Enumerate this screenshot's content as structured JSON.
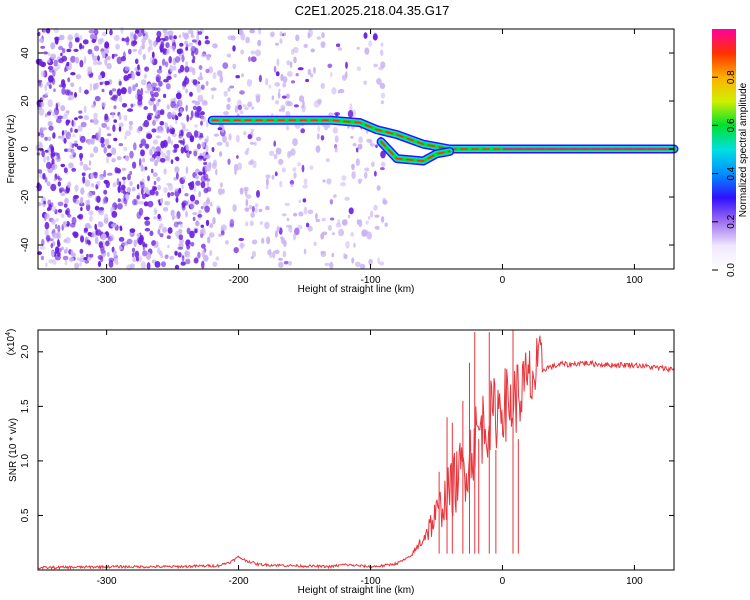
{
  "title": "C2E1.2025.218.04.35.G17",
  "colors": {
    "line": "#e8343a",
    "scatter_dark": "#6a1fe0",
    "scatter_light": "#c9b3f2",
    "axis": "#000000"
  },
  "chart_data": [
    {
      "type": "heatmap",
      "name": "spectrogram",
      "xlabel": "Height of straight line (km)",
      "ylabel": "Frequency (Hz)",
      "xlim": [
        -352,
        130
      ],
      "ylim": [
        -50,
        50
      ],
      "xticks": [
        -300,
        -200,
        -100,
        0,
        100
      ],
      "yticks": [
        -40,
        -20,
        0,
        20,
        40
      ],
      "colorbar": {
        "label": "Normalized spectral amplitude",
        "range": [
          0.0,
          1.0
        ],
        "ticks": [
          0.0,
          0.2,
          0.4,
          0.6,
          0.8
        ],
        "tick_labels": [
          "0.0",
          "0.2",
          "0.4",
          "0.6",
          "0.8"
        ],
        "colormap": [
          "#ffffff",
          "#f0e8ff",
          "#a070f0",
          "#3010ff",
          "#0090ff",
          "#00e0e0",
          "#00e030",
          "#d0f000",
          "#ffb000",
          "#ff3000",
          "#ff00a0"
        ]
      },
      "noise_regions": [
        {
          "x": [
            -352,
            -221
          ],
          "density": "dense"
        },
        {
          "x": [
            -221,
            -88
          ],
          "density": "sparse"
        }
      ],
      "ridge": [
        {
          "x": -220,
          "freq": 12
        },
        {
          "x": -200,
          "freq": 12
        },
        {
          "x": -160,
          "freq": 12
        },
        {
          "x": -130,
          "freq": 12
        },
        {
          "x": -108,
          "freq": 11
        },
        {
          "x": -95,
          "freq": 8
        },
        {
          "x": -80,
          "freq": 6
        },
        {
          "x": -60,
          "freq": 2
        },
        {
          "x": -40,
          "freq": 0
        },
        {
          "x": -20,
          "freq": 0
        },
        {
          "x": 0,
          "freq": 0
        },
        {
          "x": 130,
          "freq": 0
        }
      ],
      "ridge_branch": [
        {
          "x": -92,
          "freq": 3
        },
        {
          "x": -80,
          "freq": -4
        },
        {
          "x": -60,
          "freq": -5
        },
        {
          "x": -50,
          "freq": -2
        },
        {
          "x": -40,
          "freq": -1
        }
      ]
    },
    {
      "type": "line",
      "name": "snr",
      "xlabel": "Height of straight line (km)",
      "ylabel": "SNR (10 * v/v)",
      "y_scale_label": "(x10",
      "y_scale_exp": "4",
      "xlim": [
        -352,
        130
      ],
      "ylim": [
        0.0,
        2.2
      ],
      "xticks": [
        -300,
        -200,
        -100,
        0,
        100
      ],
      "yticks": [
        0.5,
        1.0,
        1.5,
        2.0
      ],
      "ytick_labels": [
        "0.5",
        "1.0",
        "1.5",
        "2.0"
      ],
      "series": [
        {
          "x": [
            -352,
            -300,
            -250,
            -215,
            -205,
            -200,
            -195,
            -185,
            -160,
            -130,
            -120,
            -110,
            -100,
            -90,
            -80,
            -70,
            -65,
            -60,
            -55,
            -50,
            -45,
            -40,
            -35,
            -30,
            -25,
            -20,
            -15,
            -10,
            -5,
            0,
            5,
            10,
            15,
            20,
            25,
            30,
            35,
            40,
            45,
            50,
            60,
            80,
            100,
            120,
            130
          ],
          "values": [
            0.02,
            0.03,
            0.03,
            0.04,
            0.08,
            0.12,
            0.09,
            0.05,
            0.04,
            0.03,
            0.05,
            0.04,
            0.03,
            0.04,
            0.06,
            0.12,
            0.2,
            0.3,
            0.4,
            0.5,
            0.62,
            0.72,
            0.82,
            0.92,
            1.05,
            1.22,
            1.32,
            1.38,
            1.45,
            1.55,
            1.5,
            1.58,
            1.65,
            1.72,
            1.78,
            1.83,
            1.86,
            1.87,
            1.89,
            1.88,
            1.9,
            1.88,
            1.88,
            1.85,
            1.84
          ]
        }
      ],
      "spikes": [
        {
          "x": -48,
          "y": 0.9
        },
        {
          "x": -42,
          "y": 1.4
        },
        {
          "x": -38,
          "y": 1.35
        },
        {
          "x": -30,
          "y": 1.55
        },
        {
          "x": -25,
          "y": 1.9
        },
        {
          "x": -21,
          "y": 2.18
        },
        {
          "x": -18,
          "y": 1.2
        },
        {
          "x": -10,
          "y": 2.18
        },
        {
          "x": -5,
          "y": 1.1
        },
        {
          "x": 8,
          "y": 2.2
        },
        {
          "x": 12,
          "y": 1.2
        }
      ]
    }
  ]
}
